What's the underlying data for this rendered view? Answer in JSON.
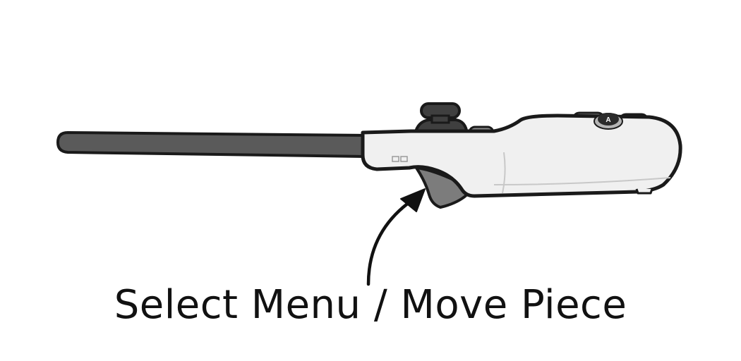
{
  "caption": "Select Menu / Move Piece",
  "controller": {
    "face_button_letter": "A"
  },
  "colors": {
    "outline": "#1a1a1a",
    "body_fill": "#f0f0f0",
    "strap_fill": "#5a5a5a",
    "trigger_fill": "#7c7c7c",
    "button_fill": "#8a8a8a",
    "stick_fill": "#3f3f3f",
    "caption_text": "#111111"
  }
}
